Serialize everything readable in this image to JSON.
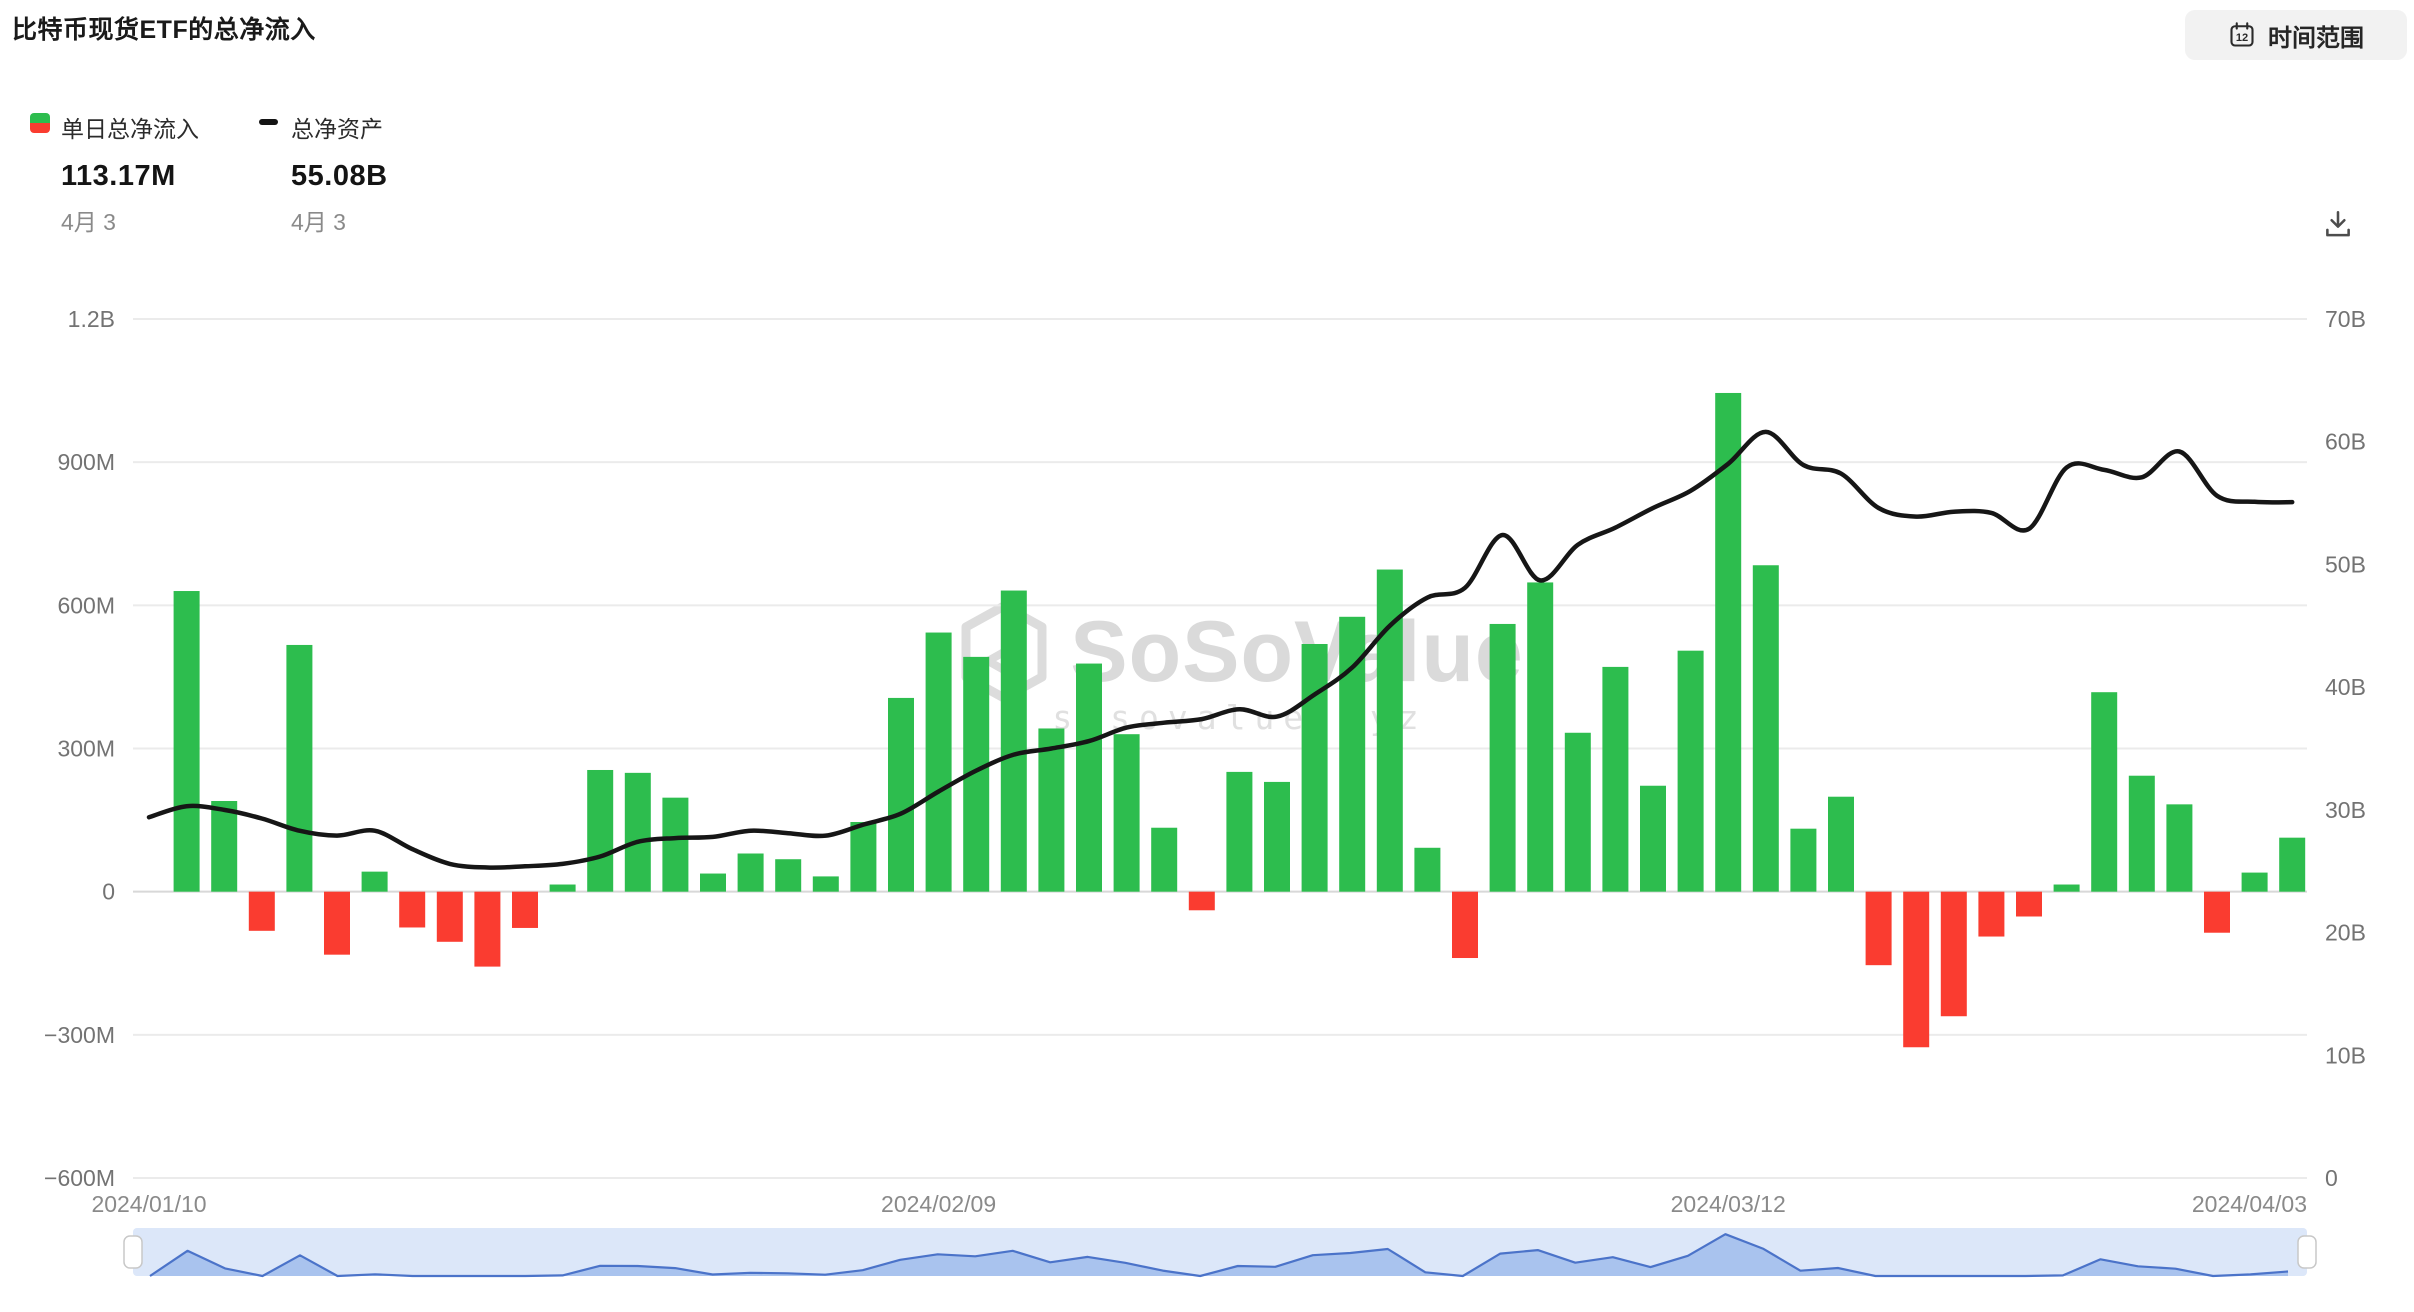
{
  "header": {
    "title": "比特币现货ETF的总净流入",
    "time_range_label": "时间范围",
    "calendar_day": "12"
  },
  "legend": {
    "inflow": {
      "label": "单日总净流入",
      "value": "113.17M",
      "date": "4月 3"
    },
    "assets": {
      "label": "总净资产",
      "value": "55.08B",
      "date": "4月 3"
    }
  },
  "watermark": {
    "name": "SoSoValue",
    "domain": "sosovalue.xyz"
  },
  "colors": {
    "bar_positive": "#2dbd4e",
    "bar_negative": "#fa3c30",
    "assets_line": "#161616",
    "grid": "#ebebeb",
    "grid_zero": "#d8d8d8",
    "axis_text": "#737373",
    "x_text": "#8a8a8a",
    "nav_bg": "#dce7f9",
    "nav_fill": "#a9c3ee",
    "nav_line": "#4b73c9"
  },
  "chart_data": {
    "type": "bar",
    "title": "比特币现货ETF的总净流入",
    "x": [
      "2024/01/10",
      "2024/01/11",
      "2024/01/12",
      "2024/01/16",
      "2024/01/17",
      "2024/01/18",
      "2024/01/19",
      "2024/01/22",
      "2024/01/23",
      "2024/01/24",
      "2024/01/25",
      "2024/01/26",
      "2024/01/29",
      "2024/01/30",
      "2024/01/31",
      "2024/02/01",
      "2024/02/02",
      "2024/02/05",
      "2024/02/06",
      "2024/02/07",
      "2024/02/08",
      "2024/02/09",
      "2024/02/12",
      "2024/02/13",
      "2024/02/14",
      "2024/02/15",
      "2024/02/16",
      "2024/02/20",
      "2024/02/21",
      "2024/02/22",
      "2024/02/23",
      "2024/02/26",
      "2024/02/27",
      "2024/02/28",
      "2024/02/29",
      "2024/03/01",
      "2024/03/04",
      "2024/03/05",
      "2024/03/06",
      "2024/03/07",
      "2024/03/08",
      "2024/03/11",
      "2024/03/12",
      "2024/03/13",
      "2024/03/14",
      "2024/03/15",
      "2024/03/18",
      "2024/03/19",
      "2024/03/20",
      "2024/03/21",
      "2024/03/22",
      "2024/03/25",
      "2024/03/26",
      "2024/03/27",
      "2024/03/28",
      "2024/04/01",
      "2024/04/02",
      "2024/04/03"
    ],
    "series": [
      {
        "name": "单日总净流入",
        "type": "bar",
        "axis": "left",
        "unit": "M USD",
        "values": [
          0,
          630,
          190,
          -82,
          517,
          -132,
          42,
          -75,
          -105,
          -157,
          -76,
          15,
          255,
          249,
          197,
          38,
          80,
          68,
          32,
          146,
          406,
          543,
          492,
          631,
          342,
          478,
          330,
          134,
          -39,
          251,
          230,
          519,
          576,
          675,
          92,
          -139,
          561,
          648,
          333,
          471,
          222,
          505,
          1045,
          684,
          132,
          199,
          -154,
          -326,
          -261,
          -94,
          -52,
          15,
          418,
          243,
          183,
          -86,
          40,
          113.17
        ]
      },
      {
        "name": "总净资产",
        "type": "line",
        "axis": "right",
        "unit": "B USD",
        "values": [
          29.4,
          30.3,
          30.0,
          29.3,
          28.3,
          27.9,
          28.3,
          26.8,
          25.6,
          25.3,
          25.4,
          25.6,
          26.2,
          27.4,
          27.7,
          27.8,
          28.3,
          28.1,
          27.9,
          28.8,
          29.7,
          31.5,
          33.2,
          34.5,
          35.0,
          35.6,
          36.7,
          37.1,
          37.4,
          38.2,
          37.6,
          39.4,
          41.6,
          45.0,
          47.3,
          48.1,
          52.4,
          48.7,
          51.6,
          53.0,
          54.6,
          56.0,
          58.2,
          60.8,
          58.1,
          57.4,
          54.6,
          53.9,
          54.3,
          54.2,
          52.9,
          57.9,
          57.7,
          57.1,
          59.2,
          55.6,
          55.1,
          55.08
        ]
      }
    ],
    "left_axis": {
      "ticks": [
        "1.2B",
        "900M",
        "600M",
        "300M",
        "0",
        "−300M",
        "−600M"
      ],
      "min_m": -600,
      "max_m": 1200,
      "grid": true
    },
    "right_axis": {
      "ticks": [
        "70B",
        "60B",
        "50B",
        "40B",
        "30B",
        "20B",
        "10B",
        "0"
      ],
      "min_b": 0,
      "max_b": 70,
      "grid": false
    },
    "x_axis": {
      "labels": [
        {
          "text": "2024/01/10",
          "index": 0
        },
        {
          "text": "2024/02/09",
          "index": 21
        },
        {
          "text": "2024/03/12",
          "index": 42
        },
        {
          "text": "2024/04/03",
          "index": 57
        }
      ]
    },
    "legend_position": "top-left"
  }
}
